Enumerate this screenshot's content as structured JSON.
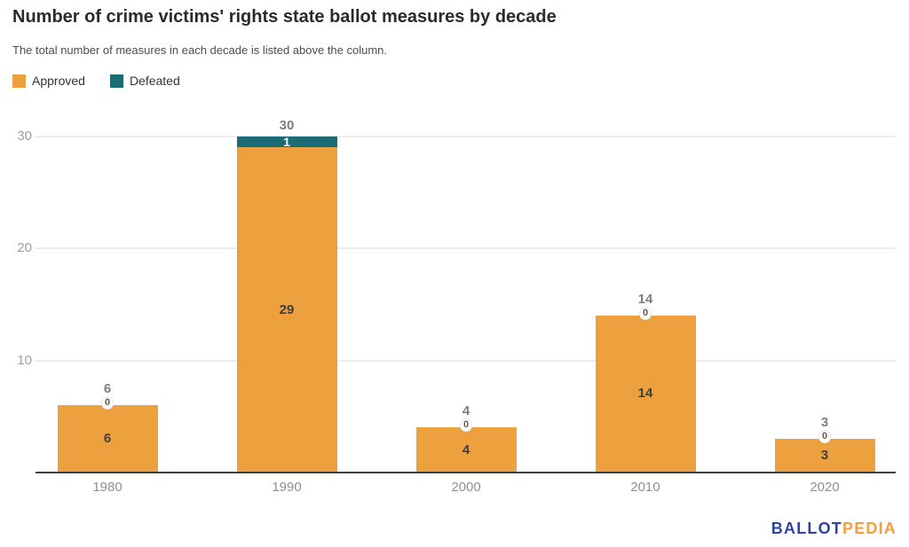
{
  "chart_data": {
    "type": "bar",
    "stacked": true,
    "title": "Number of crime victims' rights state ballot measures by decade",
    "subtitle": "The total number of measures in each decade is listed above the column.",
    "categories": [
      "1980",
      "1990",
      "2000",
      "2010",
      "2020"
    ],
    "series": [
      {
        "name": "Approved",
        "color": "#EDA03E",
        "values": [
          6,
          29,
          4,
          14,
          3
        ]
      },
      {
        "name": "Defeated",
        "color": "#1A6B74",
        "values": [
          0,
          1,
          0,
          0,
          0
        ]
      }
    ],
    "totals": [
      6,
      30,
      4,
      14,
      3
    ],
    "yticks": [
      10,
      20,
      30
    ],
    "ylim": [
      0,
      31.5
    ],
    "grid": true,
    "legend_position": "top-left",
    "label_colors": {
      "total": "#7d7d7d",
      "inside_approved": "#3c4043",
      "inside_defeated": "#ffffff"
    }
  },
  "logo": {
    "part1": "BALLOT",
    "part1_color": "#2F43A5",
    "part2": "PEDIA",
    "part2_color": "#F79D3C"
  }
}
